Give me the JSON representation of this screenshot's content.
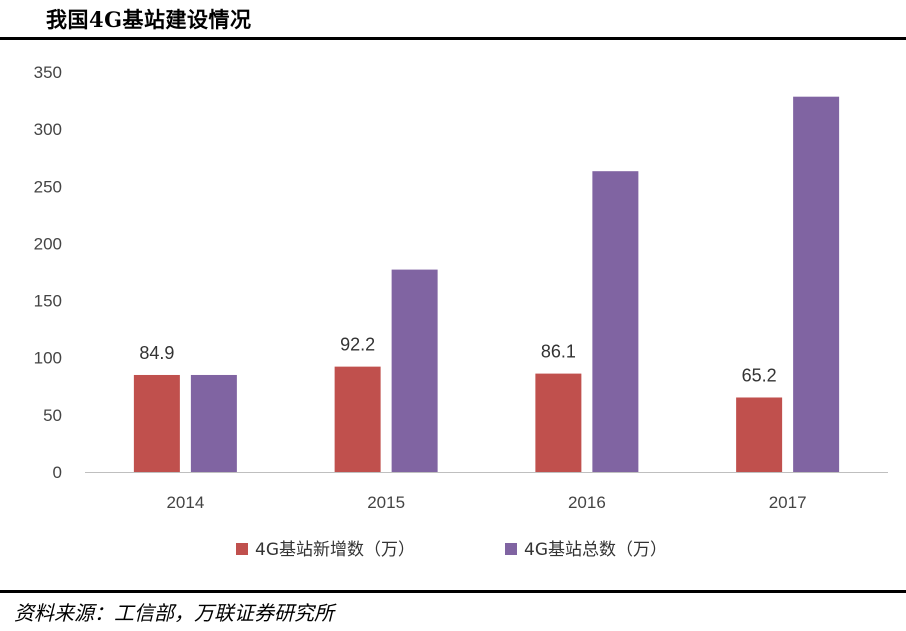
{
  "title": "我国4G基站建设情况",
  "source": "资料来源：工信部，万联证券研究所",
  "chart_data": {
    "type": "bar",
    "categories": [
      "2014",
      "2015",
      "2016",
      "2017"
    ],
    "series": [
      {
        "name": "4G基站新增数（万）",
        "values": [
          84.9,
          92.2,
          86.1,
          65.2
        ],
        "color": "#c0504d",
        "show_labels": true
      },
      {
        "name": "4G基站总数（万）",
        "values": [
          84.9,
          177.1,
          263.2,
          328.4
        ],
        "color": "#8064a2",
        "show_labels": false
      }
    ],
    "ylim": [
      0,
      350
    ],
    "yticks": [
      0,
      50,
      100,
      150,
      200,
      250,
      300,
      350
    ],
    "grid": false,
    "legend": "bottom"
  }
}
